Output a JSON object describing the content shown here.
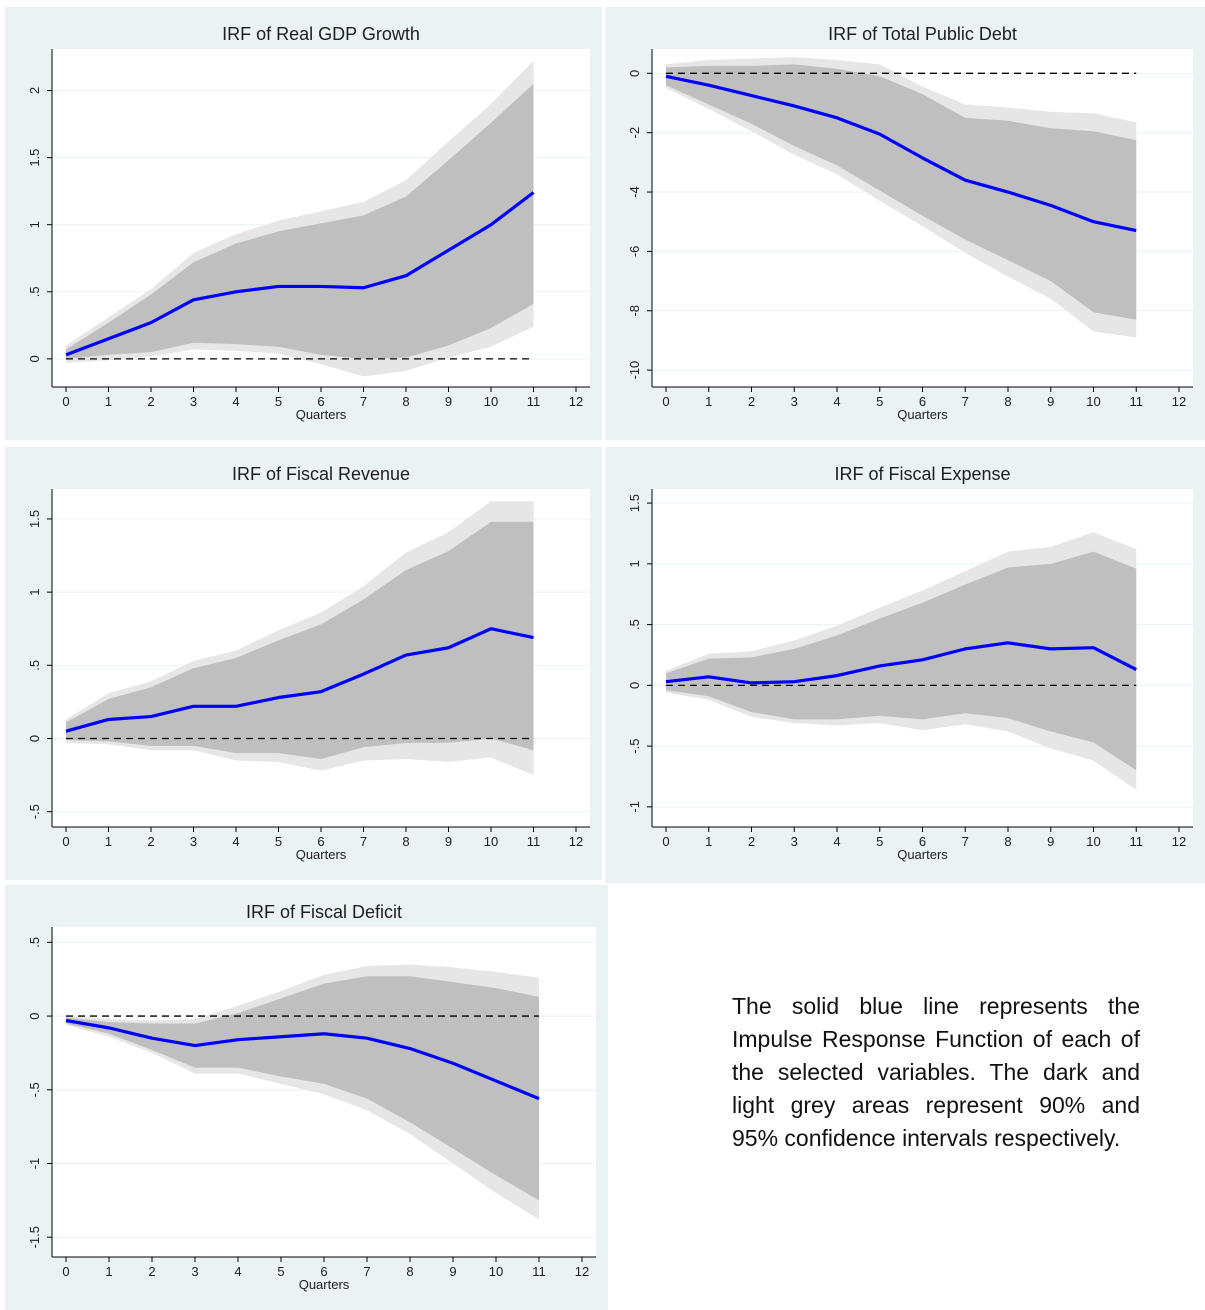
{
  "colors": {
    "panel_bg": "#eaf2f3",
    "plot_bg": "#ffffff",
    "grid": "#eaf2f3",
    "ci95": "#e6e6e6",
    "ci90": "#bfbfbf",
    "irf_line": "#0000ff",
    "zero_line": "#000000",
    "text": "#1e1e1e"
  },
  "note": "The solid blue line represents the Impulse Response Function of each of the selected variables. The dark and light grey areas represent 90% and 95% confidence intervals respectively.",
  "chart_data": [
    {
      "type": "area",
      "title": "IRF of Real GDP Growth",
      "xlabel": "Quarters",
      "ylabel": "",
      "xlim": [
        0,
        12
      ],
      "ylim": [
        -0.15,
        2.25
      ],
      "xticks": [
        0,
        1,
        2,
        3,
        4,
        5,
        6,
        7,
        8,
        9,
        10,
        11,
        12
      ],
      "yticks": [
        0,
        0.5,
        1,
        1.5,
        2
      ],
      "ytick_labels": [
        "0",
        ".5",
        "1",
        "1.5",
        "2"
      ],
      "zero_line": true,
      "grid": true,
      "x": [
        0,
        1,
        2,
        3,
        4,
        5,
        6,
        7,
        8,
        9,
        10,
        11
      ],
      "series": [
        {
          "name": "",
          "values": [
            0.03,
            0.15,
            0.27,
            0.44,
            0.5,
            0.54,
            0.54,
            0.53,
            0.62,
            0.81,
            1.0,
            1.24
          ]
        }
      ],
      "ci90": {
        "lower": [
          0.0,
          0.03,
          0.05,
          0.12,
          0.11,
          0.09,
          0.03,
          0.0,
          0.01,
          0.1,
          0.23,
          0.41
        ],
        "upper": [
          0.07,
          0.27,
          0.48,
          0.72,
          0.86,
          0.95,
          1.01,
          1.07,
          1.21,
          1.48,
          1.76,
          2.05
        ]
      },
      "ci95": {
        "lower": [
          -0.03,
          -0.01,
          0.02,
          0.07,
          0.06,
          0.04,
          -0.04,
          -0.13,
          -0.09,
          0.01,
          0.09,
          0.24
        ],
        "upper": [
          0.1,
          0.31,
          0.52,
          0.79,
          0.93,
          1.03,
          1.1,
          1.17,
          1.33,
          1.62,
          1.9,
          2.22
        ]
      }
    },
    {
      "type": "area",
      "title": "IRF of Total Public Debt",
      "xlabel": "Quarters",
      "ylabel": "",
      "xlim": [
        0,
        12
      ],
      "ylim": [
        -10.3,
        0.55
      ],
      "xticks": [
        0,
        1,
        2,
        3,
        4,
        5,
        6,
        7,
        8,
        9,
        10,
        11,
        12
      ],
      "yticks": [
        0,
        -2,
        -4,
        -6,
        -8,
        -10
      ],
      "ytick_labels": [
        "0",
        "-2",
        "-4",
        "-6",
        "-8",
        "-10"
      ],
      "zero_line": true,
      "grid": true,
      "x": [
        0,
        1,
        2,
        3,
        4,
        5,
        6,
        7,
        8,
        9,
        10,
        11
      ],
      "series": [
        {
          "name": "",
          "values": [
            -0.1,
            -0.4,
            -0.75,
            -1.1,
            -1.5,
            -2.05,
            -2.85,
            -3.6,
            -4.0,
            -4.45,
            -5.0,
            -5.3
          ]
        }
      ],
      "ci90": {
        "lower": [
          -0.4,
          -1.05,
          -1.7,
          -2.45,
          -3.1,
          -3.95,
          -4.8,
          -5.6,
          -6.3,
          -7.0,
          -8.05,
          -8.3
        ],
        "upper": [
          0.2,
          0.25,
          0.25,
          0.3,
          0.15,
          -0.1,
          -0.7,
          -1.5,
          -1.6,
          -1.85,
          -1.95,
          -2.25
        ]
      },
      "ci95": {
        "lower": [
          -0.5,
          -1.2,
          -1.95,
          -2.75,
          -3.4,
          -4.3,
          -5.15,
          -6.05,
          -6.85,
          -7.6,
          -8.7,
          -8.9
        ],
        "upper": [
          0.3,
          0.45,
          0.5,
          0.55,
          0.45,
          0.3,
          -0.45,
          -1.05,
          -1.15,
          -1.3,
          -1.35,
          -1.65
        ]
      }
    },
    {
      "type": "area",
      "title": "IRF of Fiscal Revenue",
      "xlabel": "Quarters",
      "ylabel": "",
      "xlim": [
        0,
        12
      ],
      "ylim": [
        -0.55,
        1.65
      ],
      "xticks": [
        0,
        1,
        2,
        3,
        4,
        5,
        6,
        7,
        8,
        9,
        10,
        11,
        12
      ],
      "yticks": [
        -0.5,
        0,
        0.5,
        1,
        1.5
      ],
      "ytick_labels": [
        "-.5",
        "0",
        ".5",
        "1",
        "1.5"
      ],
      "zero_line": true,
      "grid": true,
      "x": [
        0,
        1,
        2,
        3,
        4,
        5,
        6,
        7,
        8,
        9,
        10,
        11
      ],
      "series": [
        {
          "name": "",
          "values": [
            0.05,
            0.13,
            0.15,
            0.22,
            0.22,
            0.28,
            0.32,
            0.44,
            0.57,
            0.62,
            0.75,
            0.69
          ]
        }
      ],
      "ci90": {
        "lower": [
          -0.01,
          -0.02,
          -0.05,
          -0.05,
          -0.1,
          -0.1,
          -0.14,
          -0.06,
          -0.03,
          -0.03,
          0.0,
          -0.08
        ],
        "upper": [
          0.11,
          0.27,
          0.35,
          0.48,
          0.55,
          0.67,
          0.78,
          0.95,
          1.15,
          1.28,
          1.48,
          1.48
        ]
      },
      "ci95": {
        "lower": [
          -0.03,
          -0.04,
          -0.08,
          -0.08,
          -0.15,
          -0.16,
          -0.22,
          -0.15,
          -0.14,
          -0.16,
          -0.13,
          -0.25
        ],
        "upper": [
          0.13,
          0.31,
          0.39,
          0.53,
          0.6,
          0.74,
          0.86,
          1.04,
          1.27,
          1.41,
          1.62,
          1.62
        ]
      }
    },
    {
      "type": "area",
      "title": "IRF of Fiscal Expense",
      "xlabel": "Quarters",
      "ylabel": "",
      "xlim": [
        0,
        12
      ],
      "ylim": [
        -1.1,
        1.55
      ],
      "xticks": [
        0,
        1,
        2,
        3,
        4,
        5,
        6,
        7,
        8,
        9,
        10,
        11,
        12
      ],
      "yticks": [
        -1,
        -0.5,
        0,
        0.5,
        1,
        1.5
      ],
      "ytick_labels": [
        "-1",
        "-.5",
        "0",
        ".5",
        "1",
        "1.5"
      ],
      "zero_line": true,
      "grid": true,
      "x": [
        0,
        1,
        2,
        3,
        4,
        5,
        6,
        7,
        8,
        9,
        10,
        11
      ],
      "series": [
        {
          "name": "",
          "values": [
            0.03,
            0.07,
            0.02,
            0.03,
            0.08,
            0.16,
            0.21,
            0.3,
            0.35,
            0.3,
            0.31,
            0.13
          ]
        }
      ],
      "ci90": {
        "lower": [
          -0.04,
          -0.09,
          -0.22,
          -0.28,
          -0.28,
          -0.25,
          -0.28,
          -0.23,
          -0.27,
          -0.38,
          -0.47,
          -0.7
        ],
        "upper": [
          0.1,
          0.22,
          0.23,
          0.3,
          0.41,
          0.55,
          0.68,
          0.83,
          0.97,
          1.0,
          1.1,
          0.96
        ]
      },
      "ci95": {
        "lower": [
          -0.06,
          -0.12,
          -0.26,
          -0.31,
          -0.33,
          -0.31,
          -0.37,
          -0.32,
          -0.38,
          -0.52,
          -0.62,
          -0.86
        ],
        "upper": [
          0.12,
          0.26,
          0.28,
          0.37,
          0.49,
          0.64,
          0.78,
          0.94,
          1.1,
          1.14,
          1.26,
          1.12
        ]
      }
    },
    {
      "type": "area",
      "title": "IRF of Fiscal Deficit",
      "xlabel": "Quarters",
      "ylabel": "",
      "xlim": [
        0,
        12
      ],
      "ylim": [
        -1.58,
        0.55
      ],
      "xticks": [
        0,
        1,
        2,
        3,
        4,
        5,
        6,
        7,
        8,
        9,
        10,
        11,
        12
      ],
      "yticks": [
        0.5,
        0,
        -0.5,
        -1,
        -1.5
      ],
      "ytick_labels": [
        ".5",
        "0",
        "-.5",
        "-1",
        "-1.5"
      ],
      "zero_line": true,
      "grid": true,
      "x": [
        0,
        1,
        2,
        3,
        4,
        5,
        6,
        7,
        8,
        9,
        10,
        11
      ],
      "series": [
        {
          "name": "",
          "values": [
            -0.03,
            -0.08,
            -0.15,
            -0.2,
            -0.16,
            -0.14,
            -0.12,
            -0.15,
            -0.22,
            -0.32,
            -0.44,
            -0.56
          ]
        }
      ],
      "ci90": {
        "lower": [
          -0.05,
          -0.12,
          -0.23,
          -0.35,
          -0.35,
          -0.41,
          -0.46,
          -0.56,
          -0.72,
          -0.9,
          -1.08,
          -1.25
        ],
        "upper": [
          -0.01,
          -0.04,
          -0.05,
          -0.05,
          0.02,
          0.12,
          0.22,
          0.27,
          0.27,
          0.23,
          0.19,
          0.13
        ]
      },
      "ci95": {
        "lower": [
          -0.06,
          -0.14,
          -0.25,
          -0.39,
          -0.39,
          -0.46,
          -0.53,
          -0.64,
          -0.8,
          -1.0,
          -1.2,
          -1.38
        ],
        "upper": [
          0.0,
          -0.02,
          -0.03,
          -0.02,
          0.07,
          0.17,
          0.28,
          0.34,
          0.35,
          0.33,
          0.3,
          0.26
        ]
      }
    }
  ]
}
